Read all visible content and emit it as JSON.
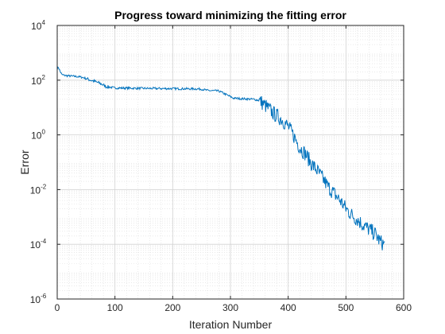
{
  "chart_data": {
    "type": "line",
    "title": "Progress toward minimizing the fitting error",
    "xlabel": "Iteration Number",
    "ylabel": "Error",
    "xlim": [
      0,
      600
    ],
    "ylim": [
      1e-06,
      10000
    ],
    "yscale": "log",
    "grid": true,
    "minor_grid": true,
    "legend": "none",
    "x_ticks": [
      "0",
      "100",
      "200",
      "300",
      "400",
      "500",
      "600"
    ],
    "y_ticks": [
      {
        "base": "10",
        "exp": "-6"
      },
      {
        "base": "10",
        "exp": "-4"
      },
      {
        "base": "10",
        "exp": "-2"
      },
      {
        "base": "10",
        "exp": "0"
      },
      {
        "base": "10",
        "exp": "2"
      },
      {
        "base": "10",
        "exp": "4"
      }
    ],
    "series": [
      {
        "color": "#0072bd",
        "x": [
          0,
          2,
          5,
          8,
          12,
          18,
          25,
          35,
          45,
          55,
          65,
          75,
          85,
          100,
          150,
          200,
          240,
          250,
          260,
          280,
          295,
          305,
          320,
          340,
          350,
          360,
          375,
          390,
          400,
          410,
          420,
          430,
          440,
          450,
          460,
          470,
          480,
          490,
          500,
          510,
          520,
          530,
          540,
          550,
          560,
          567
        ],
        "y": [
          260,
          300,
          210,
          160,
          150,
          145,
          140,
          135,
          125,
          105,
          90,
          75,
          58,
          52,
          50,
          49,
          48,
          47,
          42,
          40,
          28,
          22,
          21,
          20,
          18,
          12,
          6,
          3.5,
          2,
          0.9,
          0.35,
          0.2,
          0.09,
          0.05,
          0.025,
          0.012,
          0.007,
          0.004,
          0.002,
          0.0012,
          0.0008,
          0.0005,
          0.00035,
          0.00025,
          0.00012,
          0.0001
        ],
        "noise_from_x": 350
      }
    ]
  }
}
